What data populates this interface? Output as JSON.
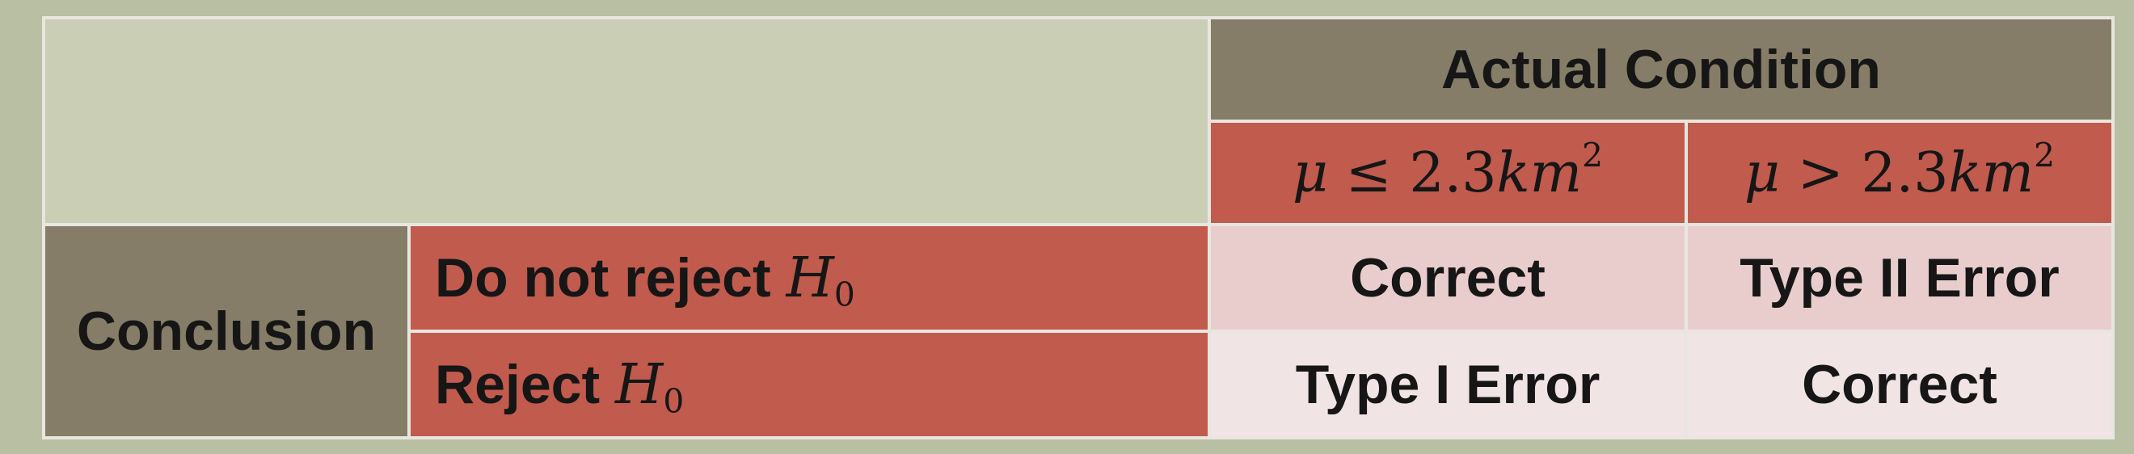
{
  "header": {
    "actual_condition": "Actual Condition",
    "col1_mu": "μ",
    "col1_op": "≤",
    "col1_value": "2.3",
    "col1_unit": "km",
    "col1_exp": "2",
    "col2_mu": "μ",
    "col2_op": ">",
    "col2_value": "2.3",
    "col2_unit": "km",
    "col2_exp": "2"
  },
  "side": {
    "conclusion": "Conclusion"
  },
  "rows": [
    {
      "label": "Do not reject",
      "hyp": "H",
      "hyp_sub": "0",
      "cell1": "Correct",
      "cell2": "Type II Error"
    },
    {
      "label": "Reject",
      "hyp": "H",
      "hyp_sub": "0",
      "cell1": "Type I Error",
      "cell2": "Correct"
    }
  ]
}
